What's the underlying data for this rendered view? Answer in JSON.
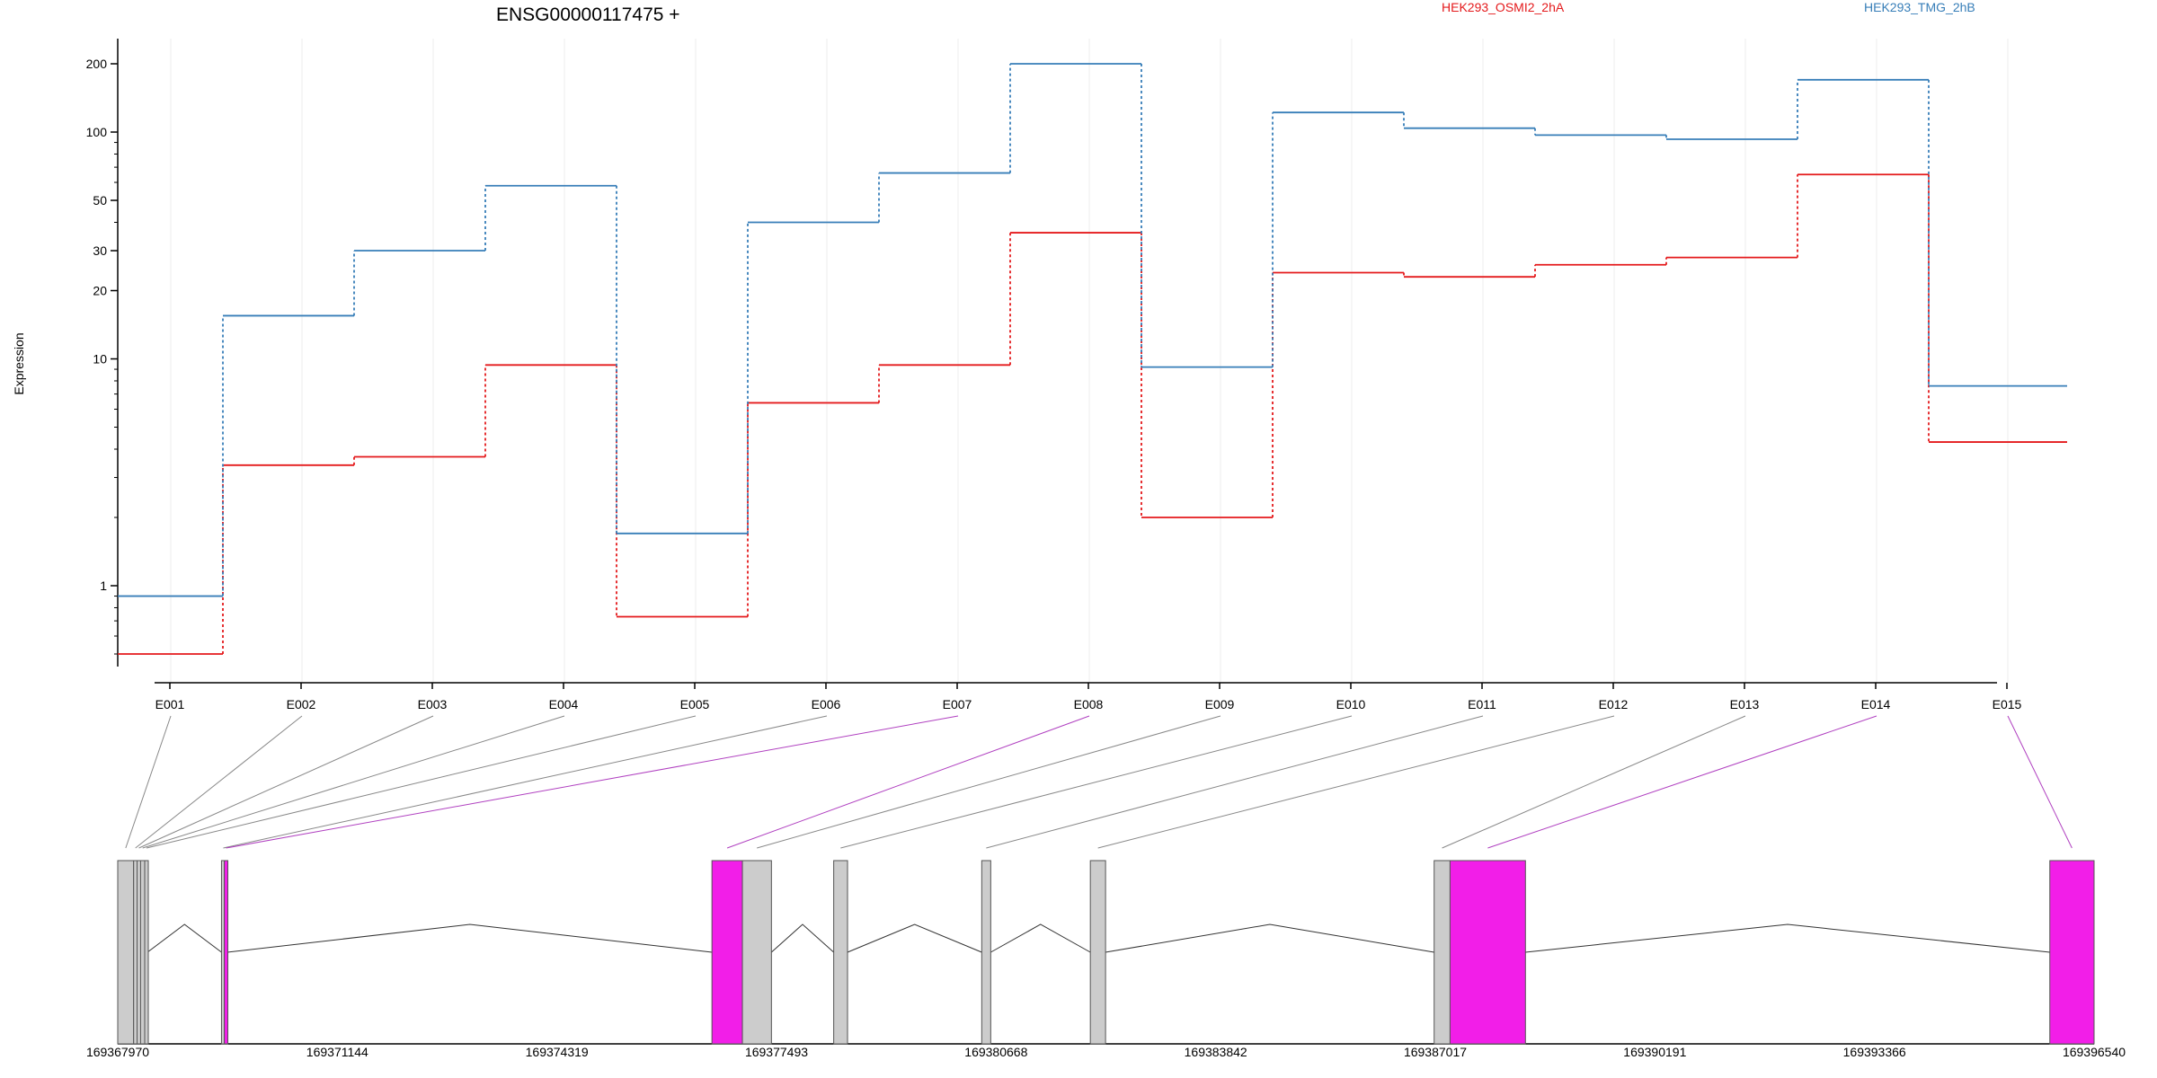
{
  "chart_data": {
    "type": "line",
    "title": "ENSG00000117475 +",
    "ylabel": "Expression",
    "yscale": "log",
    "ylim": [
      0.5,
      240
    ],
    "yticks": [
      1,
      10,
      20,
      30,
      50,
      100,
      200
    ],
    "grid": "vertical only",
    "legend_position": "top-right",
    "categories": [
      "E001",
      "E002",
      "E003",
      "E004",
      "E005",
      "E006",
      "E007",
      "E008",
      "E009",
      "E010",
      "E011",
      "E012",
      "E013",
      "E014",
      "E015"
    ],
    "series": [
      {
        "name": "HEK293_OSMI2_2hA",
        "color": "#e41a1c",
        "values": [
          0.5,
          3.4,
          3.7,
          9.4,
          0.73,
          6.4,
          9.4,
          36,
          2.0,
          24,
          23,
          26,
          28,
          65,
          4.3
        ]
      },
      {
        "name": "HEK293_TMG_2hB",
        "color": "#377eb8",
        "values": [
          0.9,
          15.5,
          30,
          58,
          1.7,
          40,
          66,
          200,
          9.2,
          122,
          104,
          97,
          93,
          170,
          7.6
        ]
      }
    ],
    "exon_highlight_color": "#f21ee8",
    "exon_default_color": "#cccccc",
    "genome_axis": {
      "range": [
        169367970,
        169396540
      ],
      "ticks": [
        "169367970",
        "169371144",
        "169374319",
        "169377493",
        "169380668",
        "169383842",
        "169387017",
        "169390191",
        "169393366",
        "169396540"
      ]
    },
    "exons": [
      {
        "id": "E001",
        "start": 169367970,
        "end": 169368200,
        "highlight": false
      },
      {
        "id": "E002",
        "start": 169368200,
        "end": 169368250,
        "highlight": false
      },
      {
        "id": "E003",
        "start": 169368250,
        "end": 169368300,
        "highlight": false
      },
      {
        "id": "E004",
        "start": 169368300,
        "end": 169368360,
        "highlight": false
      },
      {
        "id": "E005",
        "start": 169368360,
        "end": 169368400,
        "highlight": false
      },
      {
        "id": "E006",
        "start": 169369470,
        "end": 169369510,
        "highlight": false
      },
      {
        "id": "E007",
        "start": 169369510,
        "end": 169369560,
        "highlight": true
      },
      {
        "id": "E008",
        "start": 169376560,
        "end": 169377000,
        "highlight": true
      },
      {
        "id": "E009",
        "start": 169377000,
        "end": 169377420,
        "highlight": false
      },
      {
        "id": "E010",
        "start": 169378320,
        "end": 169378520,
        "highlight": false
      },
      {
        "id": "E011",
        "start": 169380460,
        "end": 169380590,
        "highlight": false
      },
      {
        "id": "E012",
        "start": 169382030,
        "end": 169382250,
        "highlight": false
      },
      {
        "id": "E013",
        "start": 169387000,
        "end": 169387230,
        "highlight": false
      },
      {
        "id": "E014",
        "start": 169387230,
        "end": 169388320,
        "highlight": true
      },
      {
        "id": "E015",
        "start": 169395900,
        "end": 169396540,
        "highlight": true
      }
    ]
  }
}
